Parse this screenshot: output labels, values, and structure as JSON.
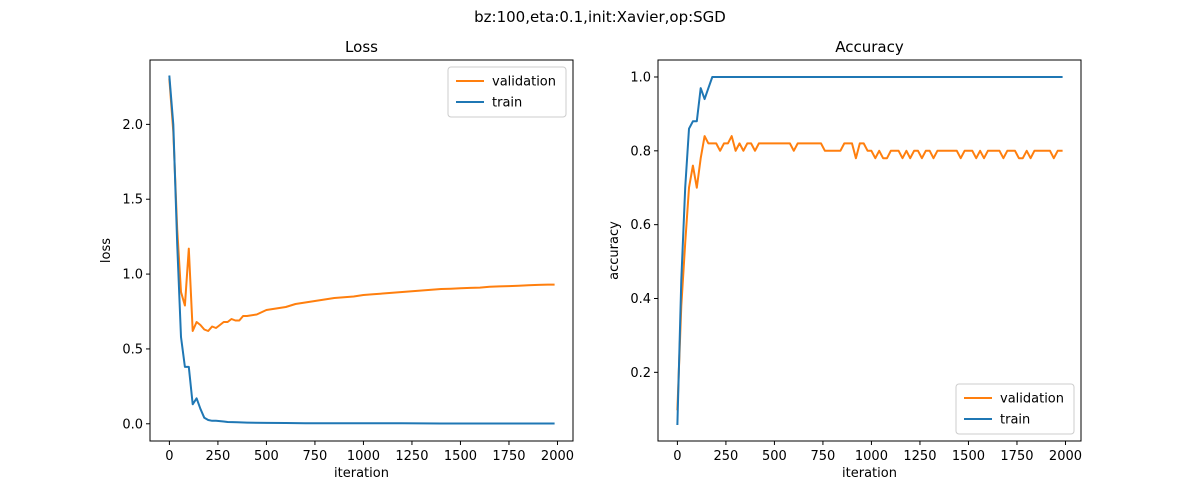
{
  "figure": {
    "suptitle": "bz:100,eta:0.1,init:Xavier,op:SGD"
  },
  "chart_data": [
    {
      "type": "line",
      "title": "Loss",
      "xlabel": "iteration",
      "ylabel": "loss",
      "xlim": [
        -100,
        2080
      ],
      "ylim": [
        -0.115,
        2.43
      ],
      "xticks": [
        0,
        250,
        500,
        750,
        1000,
        1250,
        1500,
        1750,
        2000
      ],
      "xtick_labels": [
        "0",
        "250",
        "500",
        "750",
        "1000",
        "1250",
        "1500",
        "1750",
        "2000"
      ],
      "yticks": [
        0.0,
        0.5,
        1.0,
        1.5,
        2.0
      ],
      "ytick_labels": [
        "0.0",
        "0.5",
        "1.0",
        "1.5",
        "2.0"
      ],
      "legend": {
        "placement": "upper-right"
      },
      "series": [
        {
          "name": "validation",
          "color": "#ff7f0e",
          "x": [
            0,
            20,
            40,
            60,
            80,
            100,
            120,
            140,
            160,
            180,
            200,
            220,
            240,
            260,
            280,
            300,
            320,
            340,
            360,
            380,
            400,
            450,
            500,
            550,
            600,
            650,
            700,
            750,
            800,
            850,
            900,
            950,
            1000,
            1050,
            1100,
            1150,
            1200,
            1250,
            1300,
            1350,
            1400,
            1450,
            1500,
            1550,
            1600,
            1650,
            1700,
            1750,
            1800,
            1850,
            1900,
            1950,
            1980
          ],
          "y": [
            2.3,
            1.95,
            1.3,
            0.88,
            0.79,
            1.17,
            0.62,
            0.68,
            0.66,
            0.63,
            0.62,
            0.65,
            0.64,
            0.66,
            0.68,
            0.68,
            0.7,
            0.69,
            0.69,
            0.72,
            0.72,
            0.73,
            0.76,
            0.77,
            0.78,
            0.8,
            0.81,
            0.82,
            0.83,
            0.84,
            0.845,
            0.85,
            0.86,
            0.865,
            0.87,
            0.875,
            0.88,
            0.885,
            0.89,
            0.895,
            0.9,
            0.902,
            0.905,
            0.908,
            0.91,
            0.915,
            0.918,
            0.92,
            0.922,
            0.925,
            0.928,
            0.93,
            0.93
          ]
        },
        {
          "name": "train",
          "color": "#1f77b4",
          "x": [
            0,
            20,
            40,
            60,
            80,
            100,
            120,
            140,
            160,
            180,
            200,
            220,
            240,
            260,
            280,
            300,
            350,
            400,
            500,
            600,
            700,
            800,
            900,
            1000,
            1200,
            1400,
            1600,
            1800,
            1980
          ],
          "y": [
            2.32,
            2.0,
            1.2,
            0.58,
            0.38,
            0.38,
            0.13,
            0.17,
            0.1,
            0.04,
            0.025,
            0.02,
            0.02,
            0.018,
            0.015,
            0.012,
            0.01,
            0.008,
            0.006,
            0.005,
            0.004,
            0.004,
            0.003,
            0.003,
            0.003,
            0.002,
            0.002,
            0.002,
            0.002
          ]
        }
      ]
    },
    {
      "type": "line",
      "title": "Accuracy",
      "xlabel": "iteration",
      "ylabel": "accuracy",
      "xlim": [
        -100,
        2080
      ],
      "ylim": [
        0.014,
        1.046
      ],
      "xticks": [
        0,
        250,
        500,
        750,
        1000,
        1250,
        1500,
        1750,
        2000
      ],
      "xtick_labels": [
        "0",
        "250",
        "500",
        "750",
        "1000",
        "1250",
        "1500",
        "1750",
        "2000"
      ],
      "yticks": [
        0.2,
        0.4,
        0.6,
        0.8,
        1.0
      ],
      "ytick_labels": [
        "0.2",
        "0.4",
        "0.6",
        "0.8",
        "1.0"
      ],
      "legend": {
        "placement": "lower-right"
      },
      "series": [
        {
          "name": "validation",
          "color": "#ff7f0e",
          "x": [
            0,
            20,
            40,
            60,
            80,
            100,
            120,
            140,
            160,
            180,
            200,
            220,
            240,
            260,
            280,
            300,
            320,
            340,
            360,
            380,
            400,
            420,
            440,
            460,
            480,
            500,
            520,
            540,
            560,
            580,
            600,
            620,
            640,
            660,
            680,
            700,
            720,
            740,
            760,
            780,
            800,
            820,
            840,
            860,
            880,
            900,
            920,
            940,
            960,
            980,
            1000,
            1020,
            1040,
            1060,
            1080,
            1100,
            1120,
            1140,
            1160,
            1180,
            1200,
            1220,
            1240,
            1260,
            1280,
            1300,
            1320,
            1340,
            1360,
            1380,
            1400,
            1420,
            1440,
            1460,
            1480,
            1500,
            1520,
            1540,
            1560,
            1580,
            1600,
            1620,
            1640,
            1660,
            1680,
            1700,
            1720,
            1740,
            1760,
            1780,
            1800,
            1820,
            1840,
            1860,
            1880,
            1900,
            1920,
            1940,
            1960,
            1980
          ],
          "y": [
            0.1,
            0.38,
            0.55,
            0.7,
            0.76,
            0.7,
            0.78,
            0.84,
            0.82,
            0.82,
            0.82,
            0.8,
            0.82,
            0.82,
            0.84,
            0.8,
            0.82,
            0.8,
            0.82,
            0.82,
            0.8,
            0.82,
            0.82,
            0.82,
            0.82,
            0.82,
            0.82,
            0.82,
            0.82,
            0.82,
            0.8,
            0.82,
            0.82,
            0.82,
            0.82,
            0.82,
            0.82,
            0.82,
            0.8,
            0.8,
            0.8,
            0.8,
            0.8,
            0.82,
            0.82,
            0.82,
            0.78,
            0.82,
            0.82,
            0.8,
            0.8,
            0.78,
            0.8,
            0.78,
            0.78,
            0.8,
            0.8,
            0.8,
            0.78,
            0.8,
            0.78,
            0.8,
            0.8,
            0.78,
            0.8,
            0.8,
            0.78,
            0.8,
            0.8,
            0.8,
            0.8,
            0.8,
            0.8,
            0.78,
            0.8,
            0.8,
            0.8,
            0.78,
            0.8,
            0.78,
            0.8,
            0.8,
            0.8,
            0.8,
            0.78,
            0.8,
            0.8,
            0.8,
            0.78,
            0.78,
            0.8,
            0.78,
            0.8,
            0.8,
            0.8,
            0.8,
            0.8,
            0.78,
            0.8,
            0.8
          ]
        },
        {
          "name": "train",
          "color": "#1f77b4",
          "x": [
            0,
            20,
            40,
            60,
            80,
            100,
            120,
            140,
            160,
            180,
            200,
            300,
            400,
            500,
            750,
            1000,
            1250,
            1500,
            1750,
            1980
          ],
          "y": [
            0.06,
            0.45,
            0.7,
            0.86,
            0.88,
            0.88,
            0.97,
            0.94,
            0.97,
            1.0,
            1.0,
            1.0,
            1.0,
            1.0,
            1.0,
            1.0,
            1.0,
            1.0,
            1.0,
            1.0
          ]
        }
      ]
    }
  ]
}
